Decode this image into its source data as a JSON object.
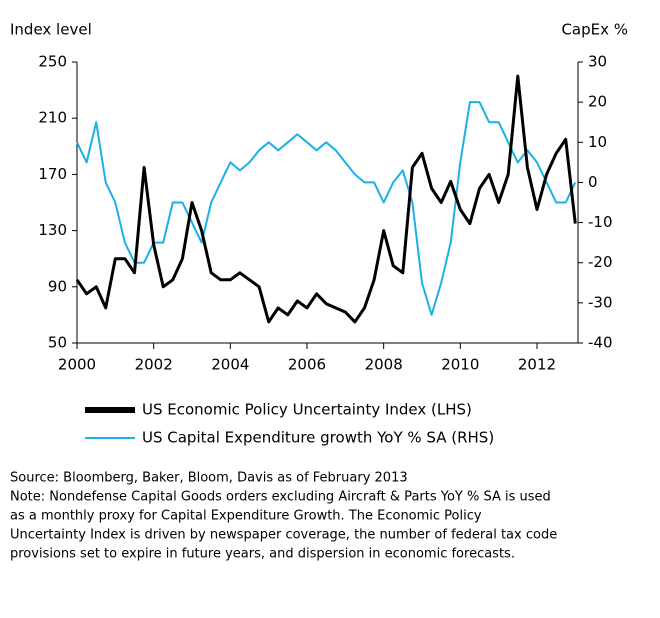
{
  "chart_data": {
    "type": "line",
    "y_label": "Index level",
    "y2_label": "CapEx %",
    "x": [
      2000,
      2000.25,
      2000.5,
      2000.75,
      2001,
      2001.25,
      2001.5,
      2001.75,
      2002,
      2002.25,
      2002.5,
      2002.75,
      2003,
      2003.25,
      2003.5,
      2003.75,
      2004,
      2004.25,
      2004.5,
      2004.75,
      2005,
      2005.25,
      2005.5,
      2005.75,
      2006,
      2006.25,
      2006.5,
      2006.75,
      2007,
      2007.25,
      2007.5,
      2007.75,
      2008,
      2008.25,
      2008.5,
      2008.75,
      2009,
      2009.25,
      2009.5,
      2009.75,
      2010,
      2010.25,
      2010.5,
      2010.75,
      2011,
      2011.25,
      2011.5,
      2011.75,
      2012,
      2012.25,
      2012.5,
      2012.75,
      2013
    ],
    "series": [
      {
        "name": "US Economic Policy Uncertainty Index (LHS)",
        "color": "#000000",
        "axis": "y",
        "values": [
          95,
          85,
          90,
          75,
          110,
          110,
          100,
          175,
          120,
          90,
          95,
          110,
          150,
          130,
          100,
          95,
          95,
          100,
          95,
          90,
          65,
          75,
          70,
          80,
          75,
          85,
          78,
          75,
          72,
          65,
          75,
          95,
          130,
          105,
          100,
          175,
          185,
          160,
          150,
          165,
          145,
          135,
          160,
          170,
          150,
          170,
          240,
          175,
          145,
          170,
          185,
          195,
          135
        ]
      },
      {
        "name": "US Capital Expenditure growth YoY % SA (RHS)",
        "color": "#1ab0e8",
        "axis": "y2",
        "values": [
          10,
          5,
          15,
          0,
          -5,
          -15,
          -20,
          -20,
          -15,
          -15,
          -5,
          -5,
          -10,
          -15,
          -5,
          0,
          5,
          3,
          5,
          8,
          10,
          8,
          10,
          12,
          10,
          8,
          10,
          8,
          5,
          2,
          0,
          0,
          -5,
          0,
          3,
          -5,
          -25,
          -33,
          -25,
          -15,
          5,
          20,
          20,
          15,
          15,
          10,
          5,
          8,
          5,
          0,
          -5,
          -5,
          0
        ]
      }
    ],
    "xlim": [
      2000,
      2013.07
    ],
    "xticks": [
      2000,
      2002,
      2004,
      2006,
      2008,
      2010,
      2012
    ],
    "ylim": [
      50,
      250
    ],
    "yticks": [
      50,
      90,
      130,
      170,
      210,
      250
    ],
    "y2lim": [
      -40,
      30
    ],
    "y2ticks": [
      -40,
      -30,
      -20,
      -10,
      0,
      10,
      20,
      30
    ],
    "notes": [
      "Source: Bloomberg, Baker, Bloom, Davis as of February 2013",
      "Note: Nondefense Capital Goods orders excluding Aircraft & Parts YoY % SA is used",
      "as a monthly proxy for Capital Expenditure Growth. The Economic Policy",
      "Uncertainty Index is driven by newspaper coverage, the number of federal tax code",
      "provisions set to expire in future years, and dispersion in economic forecasts."
    ]
  }
}
